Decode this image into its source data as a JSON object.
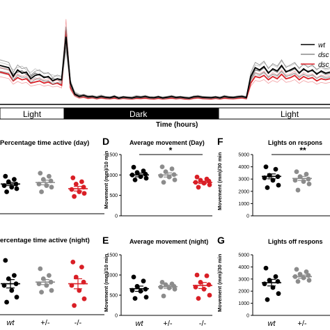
{
  "colors": {
    "wt": "#000000",
    "het": "#8c8c8c",
    "hom": "#d91f26",
    "bar_dark": "#000000",
    "bar_light": "#ffffff"
  },
  "legend": [
    {
      "label": "wt",
      "color": "#000000"
    },
    {
      "label": "dsc",
      "color": "#8c8c8c"
    },
    {
      "label": "dsc",
      "color": "#d91f26"
    }
  ],
  "timeline": {
    "xlabel": "Time (hours)",
    "bar_labels": [
      "Light",
      "Dark",
      "Light"
    ]
  },
  "panels": {
    "C_day": {
      "title": "Percentage time active (day)"
    },
    "C_night": {
      "title": "ercentage time active (night)"
    },
    "D": {
      "letter": "D",
      "title": "Average movement (Day)",
      "ylabel": "Movement (mm)/10 min",
      "sig": "*"
    },
    "E": {
      "letter": "E",
      "title": "Average movement (night)",
      "ylabel": "Movement (mm)/10 min"
    },
    "F": {
      "letter": "F",
      "title": "Lights on respons",
      "ylabel": "Movement (mm)/30 min",
      "sig": "**"
    },
    "G": {
      "letter": "G",
      "title": "Lights off respons",
      "ylabel": "Movement (mm)/30 min"
    }
  },
  "groups": [
    "wt",
    "+/-",
    "-/-"
  ],
  "chart_data": [
    {
      "type": "line",
      "id": "timeline",
      "xlabel": "Time (hours)",
      "series": [
        {
          "name": "wt",
          "color": "#000000",
          "values": [
            1700,
            1650,
            1600,
            1200,
            1500,
            1350,
            1400,
            1100,
            1250,
            1300,
            1150,
            1200,
            1000,
            1100,
            1050,
            3000,
            900,
            400,
            300,
            350,
            280,
            300,
            250,
            300,
            260,
            240,
            300,
            220,
            270,
            250,
            230,
            280,
            260,
            300,
            250,
            240,
            280,
            230,
            260,
            300,
            250,
            270,
            240,
            220,
            280,
            300,
            260,
            250,
            240,
            270,
            230,
            300,
            260,
            250,
            280,
            300,
            250,
            1200,
            1600,
            1500,
            1650,
            1350,
            1550,
            1450,
            1700,
            1400,
            1500,
            1600,
            1350,
            1550,
            1400,
            1500,
            1300,
            1450,
            1350,
            1400
          ]
        },
        {
          "name": "dsc +/-",
          "color": "#8c8c8c",
          "values": [
            1600,
            1550,
            1500,
            1300,
            1400,
            1450,
            1300,
            1200,
            1350,
            1250,
            1200,
            1150,
            1100,
            1050,
            1000,
            2800,
            850,
            450,
            350,
            300,
            300,
            280,
            270,
            320,
            250,
            260,
            280,
            250,
            260,
            240,
            250,
            300,
            270,
            280,
            260,
            250,
            270,
            240,
            270,
            280,
            260,
            260,
            250,
            240,
            270,
            290,
            270,
            260,
            250,
            260,
            250,
            290,
            270,
            260,
            270,
            290,
            260,
            1100,
            1500,
            1450,
            1600,
            1400,
            1500,
            1400,
            1650,
            1450,
            1450,
            1550,
            1400,
            1500,
            1450,
            1450,
            1350,
            1400,
            1300,
            1350
          ]
        },
        {
          "name": "dsc -/-",
          "color": "#d91f26",
          "values": [
            1400,
            1350,
            1300,
            1000,
            1150,
            1050,
            1100,
            900,
            950,
            1000,
            900,
            950,
            850,
            900,
            800,
            3300,
            700,
            350,
            250,
            280,
            220,
            250,
            200,
            240,
            210,
            200,
            230,
            190,
            220,
            200,
            190,
            220,
            210,
            230,
            200,
            190,
            220,
            190,
            210,
            230,
            200,
            220,
            190,
            180,
            220,
            240,
            210,
            200,
            190,
            220,
            190,
            230,
            210,
            200,
            220,
            240,
            200,
            900,
            1200,
            1150,
            1250,
            1050,
            1200,
            1100,
            1300,
            1100,
            1150,
            1250,
            1050,
            1200,
            1100,
            1150,
            1000,
            1100,
            1050,
            1100
          ]
        }
      ]
    },
    {
      "type": "scatter",
      "id": "D",
      "title": "Average movement (Day)",
      "ylabel": "Movement (mm)/10 min",
      "ylim": [
        0,
        1500
      ],
      "yticks": [
        0,
        500,
        1000,
        1500
      ],
      "categories": [
        "wt",
        "+/-",
        "-/-"
      ],
      "series": [
        {
          "name": "wt",
          "values": [
            1190,
            1100,
            1060,
            1020,
            1000,
            960,
            920,
            880
          ],
          "mean": 1000,
          "sem": 45
        },
        {
          "name": "+/-",
          "values": [
            1200,
            1150,
            1080,
            1010,
            980,
            950,
            880,
            820
          ],
          "mean": 1000,
          "sem": 50
        },
        {
          "name": "-/-",
          "values": [
            950,
            900,
            870,
            850,
            820,
            800,
            760,
            700
          ],
          "mean": 820,
          "sem": 30
        }
      ]
    },
    {
      "type": "scatter",
      "id": "E",
      "title": "Average movement (night)",
      "ylabel": "Movement (mm)/10 min",
      "ylim": [
        0,
        1500
      ],
      "yticks": [
        0,
        500,
        1000,
        1500
      ],
      "categories": [
        "wt",
        "+/-",
        "-/-"
      ],
      "series": [
        {
          "name": "wt",
          "values": [
            950,
            850,
            720,
            650,
            620,
            600,
            450,
            420
          ],
          "mean": 660,
          "sem": 65
        },
        {
          "name": "+/-",
          "values": [
            820,
            780,
            760,
            720,
            700,
            680,
            650,
            480
          ],
          "mean": 710,
          "sem": 40
        },
        {
          "name": "-/-",
          "values": [
            1000,
            980,
            820,
            760,
            700,
            650,
            500,
            420
          ],
          "mean": 740,
          "sem": 75
        }
      ]
    },
    {
      "type": "scatter",
      "id": "F",
      "title": "Lights on respons",
      "ylabel": "Movement (mm)/30 min",
      "ylim": [
        0,
        5000
      ],
      "yticks": [
        0,
        1000,
        2000,
        3000,
        4000,
        5000
      ],
      "categories": [
        "wt",
        "+/-"
      ],
      "series": [
        {
          "name": "wt",
          "values": [
            4000,
            3800,
            3300,
            3200,
            3100,
            2900,
            2500,
            2300
          ],
          "mean": 3220,
          "sem": 200
        },
        {
          "name": "+/-",
          "values": [
            3600,
            3400,
            3200,
            3000,
            2900,
            2800,
            2600,
            2100
          ],
          "mean": 3050,
          "sem": 170
        }
      ]
    },
    {
      "type": "scatter",
      "id": "G",
      "title": "Lights off respons",
      "ylabel": "Movement (mm)/30 min",
      "ylim": [
        0,
        5000
      ],
      "yticks": [
        0,
        1000,
        2000,
        3000,
        4000,
        5000
      ],
      "categories": [
        "wt",
        "+/-"
      ],
      "series": [
        {
          "name": "wt",
          "values": [
            3900,
            3200,
            2900,
            2800,
            2600,
            2300,
            1800,
            1300
          ],
          "mean": 2700,
          "sem": 270
        },
        {
          "name": "+/-",
          "values": [
            3800,
            3600,
            3400,
            3300,
            3200,
            3100,
            2900,
            2800
          ],
          "mean": 3200,
          "sem": 130
        }
      ]
    },
    {
      "type": "scatter",
      "id": "C_day",
      "title": "Percentage time active (day)",
      "categories": [
        "wt",
        "+/-",
        "-/-"
      ],
      "series": [
        {
          "name": "wt",
          "values": [
            0.62,
            0.58,
            0.55,
            0.52,
            0.5,
            0.48,
            0.46,
            0.42
          ],
          "mean": 0.52,
          "sem": 0.02
        },
        {
          "name": "+/-",
          "values": [
            0.66,
            0.62,
            0.58,
            0.56,
            0.52,
            0.5,
            0.48,
            0.42
          ],
          "mean": 0.54,
          "sem": 0.03
        },
        {
          "name": "-/-",
          "values": [
            0.6,
            0.55,
            0.52,
            0.48,
            0.45,
            0.42,
            0.4,
            0.36
          ],
          "mean": 0.46,
          "sem": 0.03
        }
      ]
    },
    {
      "type": "scatter",
      "id": "C_night",
      "title": "ercentage time active (night)",
      "categories": [
        "wt",
        "+/-",
        "-/-"
      ],
      "series": [
        {
          "name": "wt",
          "values": [
            0.8,
            0.62,
            0.58,
            0.52,
            0.5,
            0.44,
            0.36,
            0.3
          ],
          "mean": 0.52,
          "sem": 0.05
        },
        {
          "name": "+/-",
          "values": [
            0.7,
            0.62,
            0.58,
            0.54,
            0.52,
            0.5,
            0.44,
            0.42
          ],
          "mean": 0.54,
          "sem": 0.03
        },
        {
          "name": "-/-",
          "values": [
            0.78,
            0.72,
            0.6,
            0.54,
            0.5,
            0.44,
            0.34,
            0.26
          ],
          "mean": 0.52,
          "sem": 0.06
        }
      ]
    }
  ]
}
